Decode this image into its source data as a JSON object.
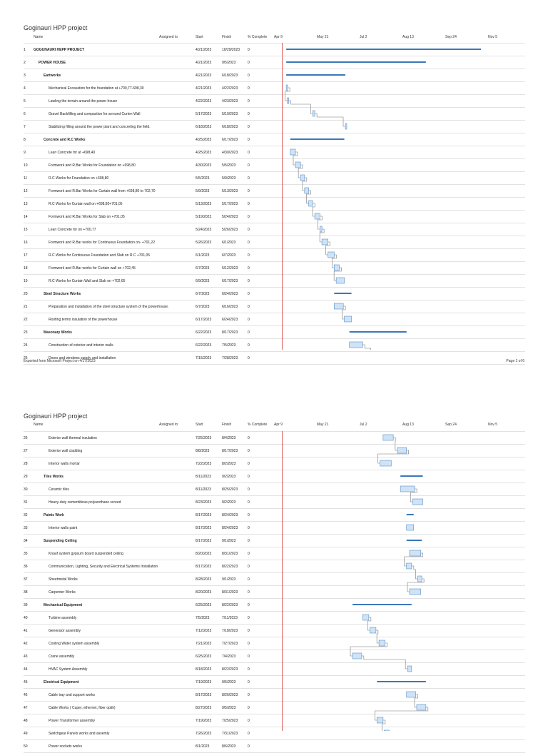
{
  "document_title": "Goginauri HPP project",
  "columns": {
    "name": "Name",
    "assigned": "Assigned to",
    "start": "Start",
    "finish": "Finish",
    "pct": "% Complete"
  },
  "timeline_labels": [
    "Apr 9",
    "May 21",
    "Jul 2",
    "Aug 13",
    "Sep 24",
    "Nov 5"
  ],
  "footer": {
    "exported": "Exported from Microsoft Project on 4/17/2023",
    "page": "Page 1 of 6"
  },
  "colors": {
    "summary_bar": "#3a78b8",
    "task_fill": "#cfe3f7",
    "task_stroke": "#5b8fc7",
    "today_line": "#d33333",
    "link": "#777777"
  },
  "page1_rows": [
    {
      "id": "1",
      "name": "GOGUNAURI HEPP PROJECT",
      "start": "4/21/2023",
      "finish": "10/29/2023",
      "pct": "0",
      "level": 0,
      "summary": true
    },
    {
      "id": "2",
      "name": "POWER HOUSE",
      "start": "4/21/2023",
      "finish": "9/5/2023",
      "pct": "0",
      "level": 1,
      "summary": true
    },
    {
      "id": "3",
      "name": "Eartworks",
      "start": "4/21/2023",
      "finish": "6/18/2023",
      "pct": "0",
      "level": 2,
      "summary": true
    },
    {
      "id": "4",
      "name": "Mechanical Excavation for the foundation at +700,77-698,30",
      "start": "4/21/2023",
      "finish": "4/22/2023",
      "pct": "0",
      "level": 3,
      "summary": false
    },
    {
      "id": "5",
      "name": "Lawling the terrain around the power house",
      "start": "4/22/2023",
      "finish": "4/23/2023",
      "pct": "0",
      "level": 3,
      "summary": false
    },
    {
      "id": "6",
      "name": "Gravel Backfilling and compaction for arround Curten Wall",
      "start": "5/17/2023",
      "finish": "5/19/2023",
      "pct": "0",
      "level": 3,
      "summary": false
    },
    {
      "id": "7",
      "name": "Stabilizing filling around the power plant and concreting the field.",
      "start": "6/18/2023",
      "finish": "6/18/2023",
      "pct": "0",
      "level": 3,
      "summary": false
    },
    {
      "id": "8",
      "name": "Concrete and R.C Works",
      "start": "4/25/2023",
      "finish": "6/17/2023",
      "pct": "0",
      "level": 2,
      "summary": true
    },
    {
      "id": "9",
      "name": "Lean Concrete for at +698,40",
      "start": "4/25/2023",
      "finish": "4/30/2023",
      "pct": "0",
      "level": 3,
      "summary": false
    },
    {
      "id": "10",
      "name": "Formwork and R.Bar Works for Foundation on +698,80",
      "start": "4/30/2023",
      "finish": "5/5/2023",
      "pct": "0",
      "level": 3,
      "summary": false
    },
    {
      "id": "11",
      "name": "R.C Works for Foundation on +698,80",
      "start": "5/5/2023",
      "finish": "5/9/2023",
      "pct": "0",
      "level": 3,
      "summary": false
    },
    {
      "id": "12",
      "name": "Formwork and R.Bar Works for Curtain wall from +698,80 to 702,70",
      "start": "5/9/2023",
      "finish": "5/13/2023",
      "pct": "0",
      "level": 3,
      "summary": false
    },
    {
      "id": "13",
      "name": "R.C Works for Curtain wall on +698,80+701,05",
      "start": "5/13/2023",
      "finish": "5/17/2023",
      "pct": "0",
      "level": 3,
      "summary": false
    },
    {
      "id": "14",
      "name": "Formwork and R.Bar Works for Slab on +701,05",
      "start": "5/19/2023",
      "finish": "5/24/2023",
      "pct": "0",
      "level": 3,
      "summary": false
    },
    {
      "id": "15",
      "name": "Lean Concrete for on +700,77",
      "start": "5/24/2023",
      "finish": "5/26/2023",
      "pct": "0",
      "level": 3,
      "summary": false
    },
    {
      "id": "16",
      "name": "Formwork and R.Bar works for Continuous Foundation on- +701,22",
      "start": "5/26/2023",
      "finish": "6/1/2023",
      "pct": "0",
      "level": 3,
      "summary": false
    },
    {
      "id": "17",
      "name": "R.C Works for Continuous Foundation and Slab on R.C +701,05",
      "start": "6/1/2023",
      "finish": "6/7/2023",
      "pct": "0",
      "level": 3,
      "summary": false
    },
    {
      "id": "18",
      "name": "Formwork and R.Bar works for Curtain wall on +702,45",
      "start": "6/7/2023",
      "finish": "6/12/2023",
      "pct": "0",
      "level": 3,
      "summary": false
    },
    {
      "id": "19",
      "name": "R.C Works for Curtain Wall and Slab on +702,65",
      "start": "6/9/2023",
      "finish": "6/17/2023",
      "pct": "0",
      "level": 3,
      "summary": false
    },
    {
      "id": "20",
      "name": "Steel Structure Works",
      "start": "6/7/2023",
      "finish": "6/24/2023",
      "pct": "0",
      "level": 2,
      "summary": true
    },
    {
      "id": "21",
      "name": "Preparation and installation of the steel structure system of the powerhouse.",
      "start": "6/7/2023",
      "finish": "6/16/2023",
      "pct": "0",
      "level": 3,
      "summary": false
    },
    {
      "id": "22",
      "name": "Roofing termo insulation of the powerhouse",
      "start": "6/17/2023",
      "finish": "6/24/2023",
      "pct": "0",
      "level": 3,
      "summary": false
    },
    {
      "id": "23",
      "name": "Masonary Works",
      "start": "6/22/2023",
      "finish": "8/17/2023",
      "pct": "0",
      "level": 2,
      "summary": true
    },
    {
      "id": "24",
      "name": "Construction of exterior and interior walls",
      "start": "6/22/2023",
      "finish": "7/5/2023",
      "pct": "0",
      "level": 3,
      "summary": false
    },
    {
      "id": "25",
      "name": "Doors and windows supply and installation",
      "start": "7/15/2023",
      "finish": "7/28/2023",
      "pct": "0",
      "level": 3,
      "summary": false
    }
  ],
  "page2_rows": [
    {
      "id": "26",
      "name": "Exterior wall thermal insulation",
      "start": "7/25/2023",
      "finish": "8/4/2023",
      "pct": "0",
      "level": 3,
      "summary": false
    },
    {
      "id": "27",
      "name": "Exterior wall cladding",
      "start": "8/8/2023",
      "finish": "8/17/2023",
      "pct": "0",
      "level": 3,
      "summary": false
    },
    {
      "id": "28",
      "name": "Interior walls mortar",
      "start": "7/22/2023",
      "finish": "8/2/2023",
      "pct": "0",
      "level": 3,
      "summary": false
    },
    {
      "id": "29",
      "name": "Tiles Works",
      "start": "8/11/2023",
      "finish": "9/2/2023",
      "pct": "0",
      "level": 2,
      "summary": true
    },
    {
      "id": "30",
      "name": "Ceramic tiles",
      "start": "8/11/2023",
      "finish": "8/25/2023",
      "pct": "0",
      "level": 3,
      "summary": false
    },
    {
      "id": "31",
      "name": "Heavy-duty cementitious polyurethane screed",
      "start": "8/23/2023",
      "finish": "9/2/2023",
      "pct": "0",
      "level": 3,
      "summary": false
    },
    {
      "id": "32",
      "name": "Paints Work",
      "start": "8/17/2023",
      "finish": "8/24/2023",
      "pct": "0",
      "level": 2,
      "summary": true
    },
    {
      "id": "33",
      "name": "Interior walls paint",
      "start": "8/17/2023",
      "finish": "8/24/2023",
      "pct": "0",
      "level": 3,
      "summary": false
    },
    {
      "id": "34",
      "name": "Suspending Ceiling",
      "start": "8/17/2023",
      "finish": "9/1/2023",
      "pct": "0",
      "level": 2,
      "summary": true
    },
    {
      "id": "35",
      "name": "Knauf system gypsum board suspended ceiling",
      "start": "8/20/2023",
      "finish": "8/31/2023",
      "pct": "0",
      "level": 3,
      "summary": false
    },
    {
      "id": "36",
      "name": "Communication, Lighting, Security and Electrical Systems Installation",
      "start": "8/17/2023",
      "finish": "8/22/2023",
      "pct": "0",
      "level": 3,
      "summary": false
    },
    {
      "id": "37",
      "name": "Sheetmetal Works",
      "start": "8/28/2023",
      "finish": "9/1/2023",
      "pct": "0",
      "level": 3,
      "summary": false
    },
    {
      "id": "38",
      "name": "Carpenter Works",
      "start": "8/20/2023",
      "finish": "8/31/2023",
      "pct": "0",
      "level": 3,
      "summary": false
    },
    {
      "id": "39",
      "name": "Mechanical Equipment",
      "start": "6/25/2023",
      "finish": "8/22/2023",
      "pct": "0",
      "level": 2,
      "summary": true
    },
    {
      "id": "40",
      "name": "Turbine assembly",
      "start": "7/5/2023",
      "finish": "7/11/2023",
      "pct": "0",
      "level": 3,
      "summary": false
    },
    {
      "id": "41",
      "name": "Generator assembly",
      "start": "7/12/2023",
      "finish": "7/18/2023",
      "pct": "0",
      "level": 3,
      "summary": false
    },
    {
      "id": "42",
      "name": "Cooling Water system assembly",
      "start": "7/21/2023",
      "finish": "7/27/2023",
      "pct": "0",
      "level": 3,
      "summary": false
    },
    {
      "id": "43",
      "name": "Crane assembly",
      "start": "6/25/2023",
      "finish": "7/4/2023",
      "pct": "0",
      "level": 3,
      "summary": false
    },
    {
      "id": "44",
      "name": "HVAC  System Assembly",
      "start": "8/18/2023",
      "finish": "8/22/2023",
      "pct": "0",
      "level": 3,
      "summary": false
    },
    {
      "id": "45",
      "name": "Electrical Equipment",
      "start": "7/19/2023",
      "finish": "9/5/2023",
      "pct": "0",
      "level": 2,
      "summary": true
    },
    {
      "id": "46",
      "name": "Cable tray and support works",
      "start": "8/17/2023",
      "finish": "8/26/2023",
      "pct": "0",
      "level": 3,
      "summary": false
    },
    {
      "id": "47",
      "name": " Cable Works ( Cuper, ethernet, fiber optik)",
      "start": "8/27/2023",
      "finish": "9/5/2023",
      "pct": "0",
      "level": 3,
      "summary": false
    },
    {
      "id": "48",
      "name": "Power Transformer assembly",
      "start": "7/19/2023",
      "finish": "7/25/2023",
      "pct": "0",
      "level": 3,
      "summary": false
    },
    {
      "id": "49",
      "name": "Switchgear Panels works and assemly",
      "start": "7/26/2023",
      "finish": "7/31/2023",
      "pct": "0",
      "level": 3,
      "summary": false
    },
    {
      "id": "50",
      "name": "Power sockets works",
      "start": "8/1/2023",
      "finish": "8/6/2023",
      "pct": "0",
      "level": 3,
      "summary": false
    }
  ]
}
